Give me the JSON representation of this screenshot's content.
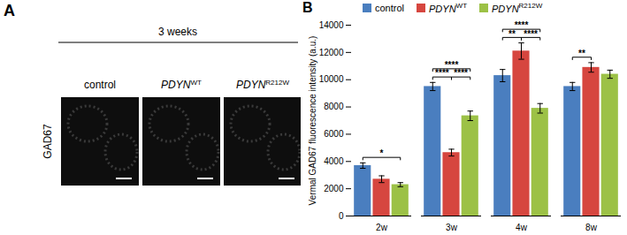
{
  "panel_a": {
    "label": "A",
    "title": "3 weeks",
    "row_label": "GAD67",
    "columns": [
      {
        "name": "control"
      },
      {
        "name": "PDYN",
        "name_sup": "WT"
      },
      {
        "name": "PDYN",
        "name_sup": "R212W"
      }
    ]
  },
  "chart_data": {
    "type": "bar",
    "panel_label": "B",
    "ylabel": "Vermal GAD67 fluorescence intensity (a.u.)",
    "categories": [
      "2w",
      "3w",
      "4w",
      "8w"
    ],
    "series": [
      {
        "name": "control",
        "color": "#4a7ebf",
        "values": [
          3700,
          9500,
          10300,
          9500
        ],
        "errors": [
          200,
          300,
          450,
          300
        ]
      },
      {
        "name": "PDYN",
        "name_sup": "WT",
        "color": "#d6463f",
        "values": [
          2700,
          4650,
          12100,
          10900
        ],
        "errors": [
          250,
          250,
          600,
          350
        ]
      },
      {
        "name": "PDYN",
        "name_sup": "R212W",
        "color": "#9cc146",
        "values": [
          2300,
          7350,
          7900,
          10400
        ],
        "errors": [
          150,
          350,
          350,
          300
        ]
      }
    ],
    "significance": [
      {
        "category": "2w",
        "between": [
          0,
          2
        ],
        "label": "*"
      },
      {
        "category": "3w",
        "between": [
          0,
          1
        ],
        "label": "****"
      },
      {
        "category": "3w",
        "between": [
          0,
          2
        ],
        "label": "****"
      },
      {
        "category": "3w",
        "between": [
          1,
          2
        ],
        "label": "****"
      },
      {
        "category": "4w",
        "between": [
          0,
          1
        ],
        "label": "**"
      },
      {
        "category": "4w",
        "between": [
          0,
          2
        ],
        "label": "****"
      },
      {
        "category": "4w",
        "between": [
          1,
          2
        ],
        "label": "****"
      },
      {
        "category": "8w",
        "between": [
          0,
          1
        ],
        "label": "**"
      }
    ],
    "ylim": [
      0,
      14000
    ],
    "yticks": [
      0,
      2000,
      4000,
      6000,
      8000,
      10000,
      12000,
      14000
    ],
    "legend": "top",
    "grid": false
  }
}
